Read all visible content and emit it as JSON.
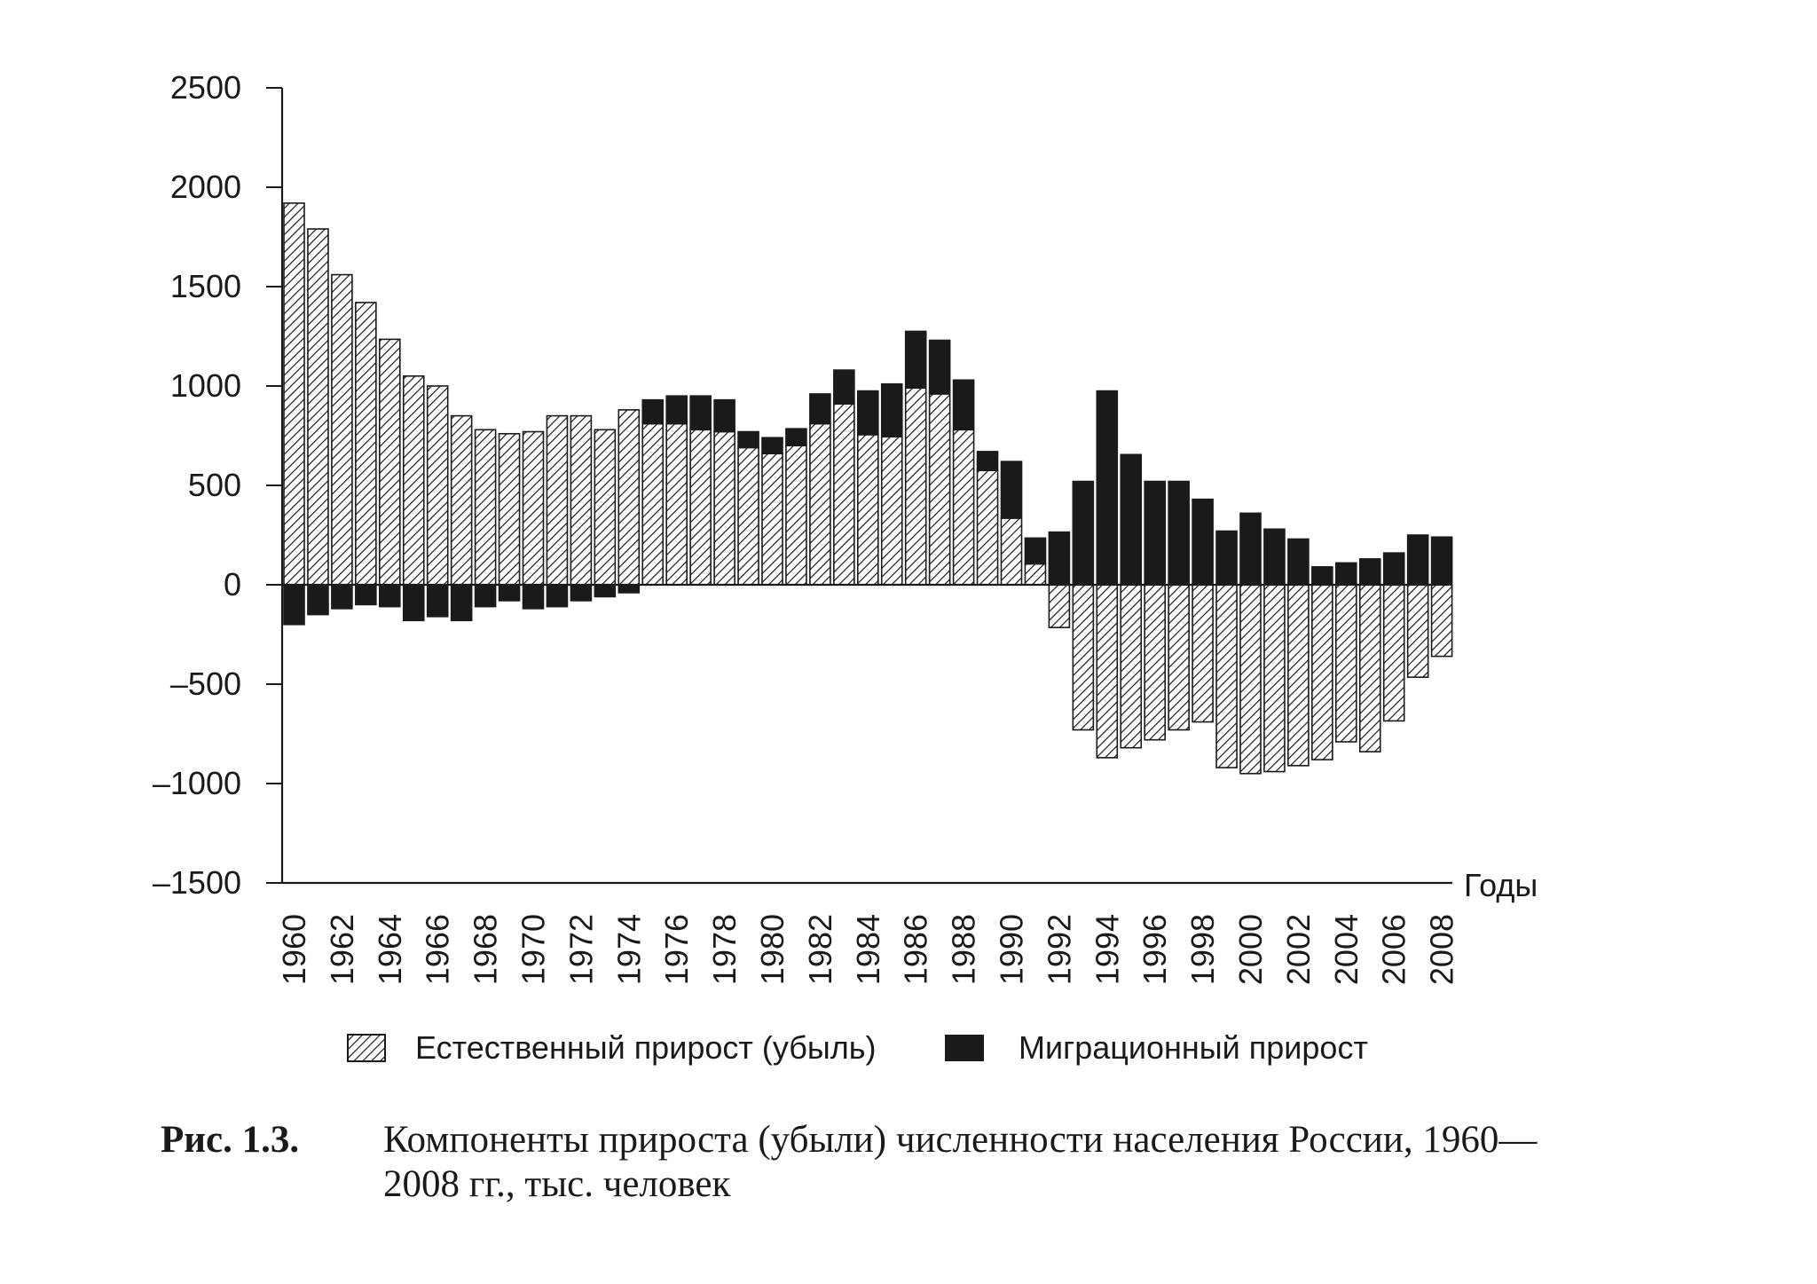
{
  "chart_data": {
    "type": "bar",
    "stacked": true,
    "xlabel": "Годы",
    "ylabel": "",
    "ylim": [
      -1500,
      2500
    ],
    "yticks": [
      2500,
      2000,
      1500,
      1000,
      500,
      0,
      -500,
      -1000,
      -1500
    ],
    "ytick_labels": [
      "2500",
      "2000",
      "1500",
      "1000",
      "500",
      "0",
      "–500",
      "–1000",
      "–1500"
    ],
    "categories": [
      "1960",
      "1961",
      "1962",
      "1963",
      "1964",
      "1965",
      "1966",
      "1967",
      "1968",
      "1969",
      "1970",
      "1971",
      "1972",
      "1973",
      "1974",
      "1975",
      "1976",
      "1977",
      "1978",
      "1979",
      "1980",
      "1981",
      "1982",
      "1983",
      "1984",
      "1985",
      "1986",
      "1987",
      "1988",
      "1989",
      "1990",
      "1991",
      "1992",
      "1993",
      "1994",
      "1995",
      "1996",
      "1997",
      "1998",
      "1999",
      "2000",
      "2001",
      "2002",
      "2003",
      "2004",
      "2005",
      "2006",
      "2007",
      "2008"
    ],
    "xtick_labels": [
      "1960",
      "1962",
      "1964",
      "1966",
      "1968",
      "1970",
      "1972",
      "1974",
      "1976",
      "1978",
      "1980",
      "1982",
      "1984",
      "1986",
      "1988",
      "1990",
      "1992",
      "1994",
      "1996",
      "1998",
      "2000",
      "2002",
      "2004",
      "2006",
      "2008"
    ],
    "series": [
      {
        "name": "Естественный прирост (убыль)",
        "pattern": "hatched",
        "values": [
          1920,
          1790,
          1560,
          1420,
          1235,
          1050,
          1000,
          850,
          780,
          760,
          770,
          850,
          850,
          780,
          880,
          810,
          810,
          780,
          770,
          690,
          660,
          700,
          810,
          910,
          755,
          745,
          990,
          960,
          780,
          575,
          335,
          105,
          -215,
          -730,
          -870,
          -820,
          -780,
          -730,
          -690,
          -920,
          -950,
          -940,
          -910,
          -880,
          -790,
          -840,
          -685,
          -465,
          -360
        ]
      },
      {
        "name": "Миграционный прирост",
        "pattern": "solid",
        "color": "#1a1a1a",
        "values": [
          -200,
          -150,
          -120,
          -100,
          -110,
          -180,
          -160,
          -180,
          -110,
          -80,
          -120,
          -110,
          -80,
          -60,
          -40,
          120,
          140,
          170,
          160,
          80,
          80,
          85,
          150,
          170,
          220,
          265,
          285,
          270,
          250,
          95,
          285,
          130,
          265,
          520,
          975,
          655,
          520,
          520,
          430,
          270,
          360,
          280,
          230,
          90,
          110,
          130,
          160,
          250,
          240
        ]
      }
    ]
  },
  "legend": {
    "natural": "Естественный прирост (убыль)",
    "migration": "Миграционный прирост"
  },
  "caption": {
    "label": "Рис. 1.3.",
    "text": "Компоненты прироста (убыли) численности населения России, 1960—2008 гг., тыс. человек"
  }
}
